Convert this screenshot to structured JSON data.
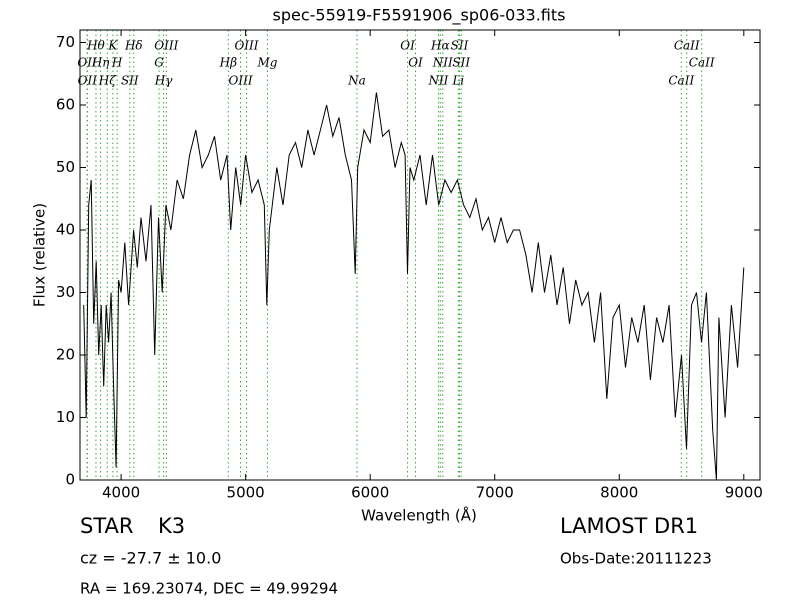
{
  "chart_data": {
    "type": "line",
    "title": "spec-55919-F5591906_sp06-033.fits",
    "x_label": "Wavelength (Å)",
    "y_label": "Flux (relative)",
    "color": "#000000",
    "line_color": "#33aa33",
    "xlim": [
      3670,
      9130
    ],
    "ylim": [
      0,
      72
    ],
    "xticks": [
      4000,
      5000,
      6000,
      7000,
      8000,
      9000
    ],
    "yticks": [
      0,
      10,
      20,
      30,
      40,
      50,
      60,
      70
    ],
    "grid": false,
    "x": [
      3700,
      3720,
      3740,
      3760,
      3780,
      3800,
      3820,
      3840,
      3860,
      3880,
      3900,
      3920,
      3940,
      3960,
      3980,
      4000,
      4030,
      4060,
      4100,
      4130,
      4160,
      4200,
      4240,
      4270,
      4300,
      4330,
      4360,
      4400,
      4450,
      4500,
      4550,
      4600,
      4650,
      4700,
      4750,
      4800,
      4850,
      4880,
      4920,
      4960,
      5000,
      5050,
      5100,
      5150,
      5170,
      5190,
      5250,
      5300,
      5350,
      5400,
      5450,
      5500,
      5550,
      5600,
      5650,
      5700,
      5750,
      5800,
      5850,
      5880,
      5900,
      5950,
      6000,
      6050,
      6100,
      6150,
      6200,
      6250,
      6280,
      6300,
      6320,
      6350,
      6400,
      6450,
      6500,
      6550,
      6600,
      6650,
      6700,
      6750,
      6800,
      6850,
      6900,
      6950,
      7000,
      7050,
      7100,
      7150,
      7200,
      7250,
      7300,
      7350,
      7400,
      7450,
      7500,
      7550,
      7600,
      7650,
      7700,
      7750,
      7800,
      7850,
      7900,
      7950,
      8000,
      8050,
      8100,
      8150,
      8200,
      8250,
      8300,
      8350,
      8400,
      8450,
      8500,
      8540,
      8580,
      8620,
      8660,
      8700,
      8750,
      8780,
      8800,
      8850,
      8900,
      8950,
      9000
    ],
    "values": [
      28,
      10,
      44,
      48,
      25,
      35,
      20,
      28,
      15,
      28,
      22,
      30,
      15,
      2,
      32,
      30,
      38,
      28,
      40,
      34,
      42,
      35,
      44,
      20,
      42,
      30,
      44,
      40,
      48,
      45,
      52,
      56,
      50,
      52,
      55,
      48,
      52,
      40,
      50,
      44,
      52,
      46,
      48,
      44,
      28,
      40,
      50,
      44,
      52,
      54,
      50,
      56,
      52,
      56,
      60,
      55,
      58,
      52,
      48,
      33,
      50,
      56,
      54,
      62,
      55,
      56,
      50,
      54,
      52,
      33,
      50,
      48,
      52,
      44,
      52,
      44,
      48,
      46,
      48,
      44,
      42,
      45,
      40,
      42,
      38,
      42,
      38,
      40,
      40,
      36,
      30,
      38,
      30,
      36,
      28,
      34,
      25,
      32,
      28,
      30,
      22,
      30,
      13,
      26,
      28,
      18,
      26,
      22,
      28,
      16,
      26,
      22,
      28,
      10,
      20,
      5,
      28,
      30,
      22,
      30,
      8,
      0,
      26,
      10,
      28,
      18,
      34
    ],
    "spectral_lines": [
      {
        "x": 3727,
        "label": "OII"
      },
      {
        "x": 3729,
        "label": "OII"
      },
      {
        "x": 3798,
        "label": "Hθ"
      },
      {
        "x": 3835,
        "label": "Hη"
      },
      {
        "x": 3889,
        "label": "Hζ"
      },
      {
        "x": 3934,
        "label": "K"
      },
      {
        "x": 3968,
        "label": "H"
      },
      {
        "x": 4070,
        "label": "SII"
      },
      {
        "x": 4102,
        "label": "Hδ"
      },
      {
        "x": 4305,
        "label": "G"
      },
      {
        "x": 4341,
        "label": "Hγ"
      },
      {
        "x": 4363,
        "label": "OIII"
      },
      {
        "x": 4861,
        "label": "Hβ"
      },
      {
        "x": 4959,
        "label": "OIII"
      },
      {
        "x": 5007,
        "label": "OIII"
      },
      {
        "x": 5175,
        "label": "Mg"
      },
      {
        "x": 5894,
        "label": "Na"
      },
      {
        "x": 6300,
        "label": "OI"
      },
      {
        "x": 6364,
        "label": "OI"
      },
      {
        "x": 6548,
        "label": "NII"
      },
      {
        "x": 6563,
        "label": "Hα"
      },
      {
        "x": 6583,
        "label": "NII"
      },
      {
        "x": 6708,
        "label": "Li"
      },
      {
        "x": 6717,
        "label": "SII"
      },
      {
        "x": 6731,
        "label": "SII"
      },
      {
        "x": 8498,
        "label": "CaII"
      },
      {
        "x": 8542,
        "label": "CaII"
      },
      {
        "x": 8662,
        "label": "CaII"
      }
    ]
  },
  "info": {
    "class": "STAR",
    "subclass": "K3",
    "cz": "cz = -27.7 ± 10.0",
    "coords": "RA = 169.23074, DEC = 49.99294",
    "survey": "LAMOST DR1",
    "obs_date": "Obs-Date:20111223"
  }
}
